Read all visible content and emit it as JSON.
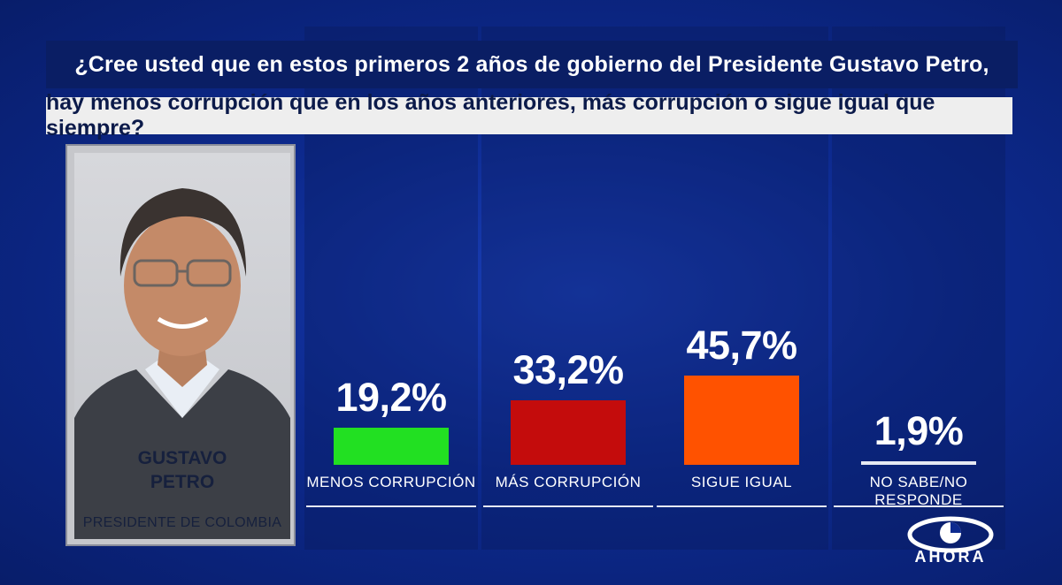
{
  "question": {
    "line1": "¿Cree usted que en estos primeros 2 años de gobierno del Presidente Gustavo Petro,",
    "line2": "hay menos corrupción que en los años anteriores, más corrupción o sigue igual que siempre?"
  },
  "person": {
    "name_line1": "GUSTAVO",
    "name_line2": "PETRO",
    "role": "PRESIDENTE DE COLOMBIA"
  },
  "chart_data": {
    "type": "bar",
    "title": "¿Cree usted que en estos primeros 2 años de gobierno del Presidente Gustavo Petro, hay menos corrupción que en los años anteriores, más corrupción o sigue igual que siempre?",
    "categories": [
      "MENOS CORRUPCIÓN",
      "MÁS CORRUPCIÓN",
      "SIGUE IGUAL",
      "NO SABE/NO RESPONDE"
    ],
    "values": [
      19.2,
      33.2,
      45.7,
      1.9
    ],
    "labels": [
      "19,2%",
      "33,2%",
      "45,7%",
      "1,9%"
    ],
    "colors": [
      "#22e022",
      "#c40c0c",
      "#ff5200",
      "#e6e9f3"
    ],
    "unit": "%",
    "ylim": [
      0,
      100
    ],
    "xlabel": "",
    "ylabel": "",
    "grid": false,
    "legend": "none"
  },
  "brand": {
    "logo_text": "AHORA",
    "logo_icon": "caracol-logo-icon"
  }
}
